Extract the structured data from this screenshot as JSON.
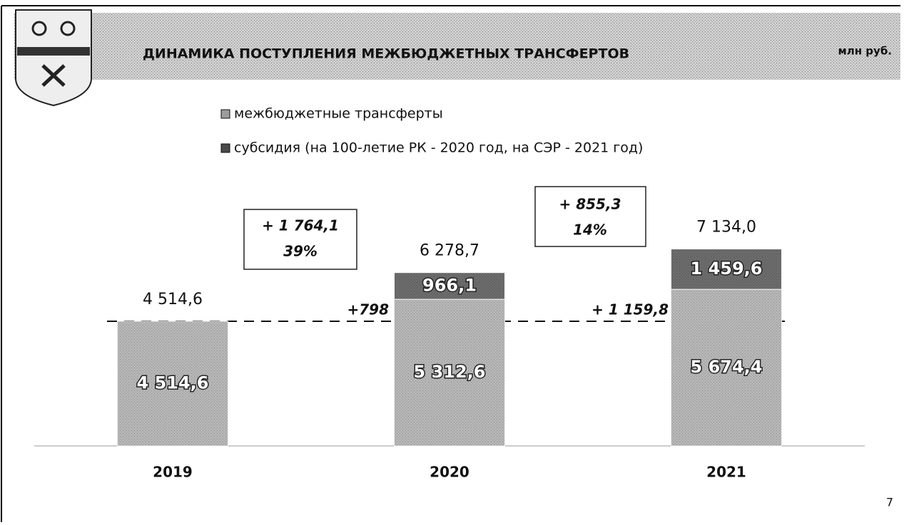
{
  "header": {
    "title": "ДИНАМИКА ПОСТУПЛЕНИЯ МЕЖБЮДЖЕТНЫХ ТРАНСФЕРТОВ",
    "unit": "млн руб."
  },
  "page_number": "7",
  "chart_data": {
    "type": "stacked_bar",
    "categories": [
      "2019",
      "2020",
      "2021"
    ],
    "series": [
      {
        "name": "межбюджетные трансферты",
        "color": "#9c9c9c",
        "values": [
          4514.6,
          5312.6,
          5674.4
        ],
        "value_labels": [
          "4 514,6",
          "5 312,6",
          "5 674,4"
        ]
      },
      {
        "name": "субсидия (на 100-летие РК - 2020 год, на СЭР - 2021 год)",
        "color": "#4a4a4a",
        "values": [
          null,
          966.1,
          1459.6
        ],
        "value_labels": [
          null,
          "966,1",
          "1 459,6"
        ]
      }
    ],
    "totals": [
      4514.6,
      6278.7,
      7134.0
    ],
    "total_labels": [
      "4 514,6",
      "6 278,7",
      "7 134,0"
    ],
    "annotations": [
      "+ 1 764,1",
      "39%",
      "+ 855,3",
      "14%",
      "+798",
      "+ 1 159,8"
    ],
    "ylim": [
      0,
      8000
    ]
  }
}
